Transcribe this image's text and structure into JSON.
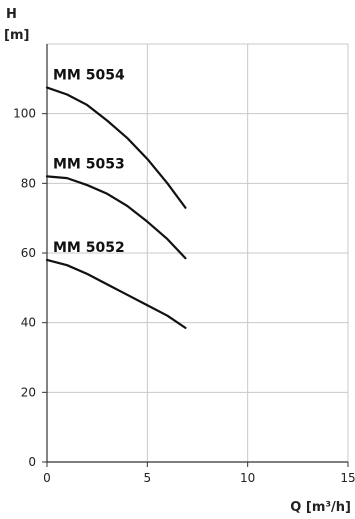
{
  "chart_data": {
    "type": "line",
    "ylabel_line1": "H",
    "ylabel_line2": "[m]",
    "xlabel": "Q [m³/h]",
    "xlim": [
      0,
      15
    ],
    "ylim": [
      0,
      120
    ],
    "xticks": [
      0,
      5,
      10,
      15
    ],
    "yticks": [
      0,
      20,
      40,
      60,
      80,
      100
    ],
    "grid": true,
    "series": [
      {
        "name": "MM 5054",
        "x": [
          0,
          1,
          2,
          3,
          4,
          5,
          6,
          6.9
        ],
        "y": [
          107.5,
          105.5,
          102.5,
          98,
          93,
          87,
          80,
          73
        ]
      },
      {
        "name": "MM 5053",
        "x": [
          0,
          1,
          2,
          3,
          4,
          5,
          6,
          6.9
        ],
        "y": [
          82,
          81.5,
          79.5,
          77,
          73.5,
          69,
          64,
          58.5
        ]
      },
      {
        "name": "MM 5052",
        "x": [
          0,
          1,
          2,
          3,
          4,
          5,
          6,
          6.9
        ],
        "y": [
          58,
          56.5,
          54,
          51,
          48,
          45,
          42,
          38.5
        ]
      }
    ]
  }
}
